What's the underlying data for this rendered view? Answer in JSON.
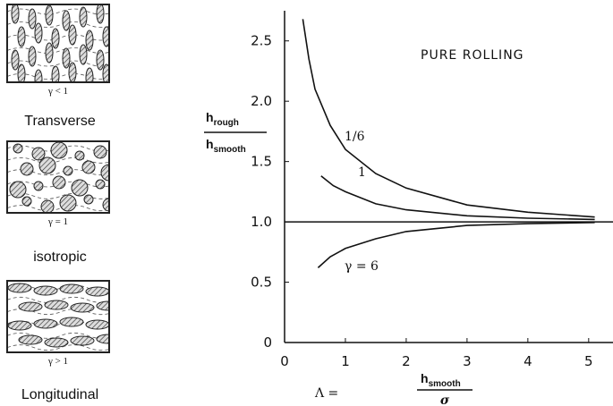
{
  "panels": [
    {
      "caption": "γ < 1",
      "label": "Transverse"
    },
    {
      "caption": "γ = 1",
      "label": "isotropic"
    },
    {
      "caption": "γ > 1",
      "label": "Longitudinal"
    }
  ],
  "chart_data": {
    "type": "line",
    "annotation": "PURE ROLLING",
    "y_label": {
      "numerator": "h",
      "numerator_sub": "rough",
      "denominator": "h",
      "denominator_sub": "smooth"
    },
    "x_label": {
      "prefix": "Λ =",
      "numerator": "h",
      "numerator_sub": "smooth",
      "denominator": "σ"
    },
    "xlim": [
      0,
      5.4
    ],
    "ylim": [
      0,
      2.75
    ],
    "xticks": [
      0,
      1,
      2,
      3,
      4,
      5
    ],
    "yticks": [
      0,
      0.5,
      {
        "value": 1,
        "label": "1.0"
      },
      {
        "value": 1.5,
        "label": "1.5"
      },
      {
        "value": 2,
        "label": "2.0"
      },
      {
        "value": 2.5,
        "label": "2.5"
      }
    ],
    "reference_y": 1,
    "series": [
      {
        "name": "1/6",
        "color": "#111111",
        "x": [
          0.3,
          0.4,
          0.5,
          0.75,
          1,
          1.5,
          2,
          3,
          4,
          5.1
        ],
        "values": [
          2.68,
          2.35,
          2.1,
          1.8,
          1.6,
          1.4,
          1.28,
          1.14,
          1.08,
          1.04
        ]
      },
      {
        "name": "1",
        "color": "#111111",
        "x": [
          0.6,
          0.8,
          1,
          1.5,
          2,
          3,
          4,
          5.1
        ],
        "values": [
          1.38,
          1.3,
          1.25,
          1.15,
          1.1,
          1.05,
          1.03,
          1.02
        ]
      },
      {
        "name": "γ = 6",
        "color": "#111111",
        "x": [
          0.55,
          0.75,
          1,
          1.5,
          2,
          3,
          4,
          5.1
        ],
        "values": [
          0.62,
          0.71,
          0.78,
          0.86,
          0.92,
          0.97,
          0.985,
          0.995
        ]
      }
    ]
  }
}
